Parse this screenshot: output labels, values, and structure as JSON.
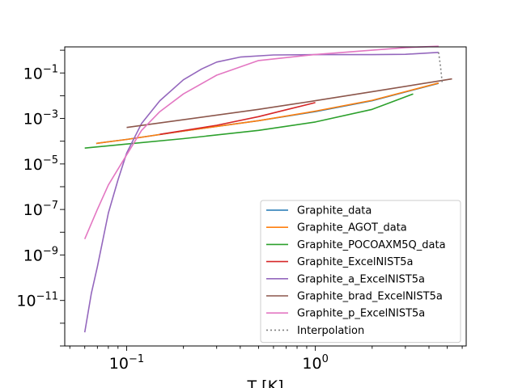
{
  "chart_data": {
    "type": "line",
    "title": "",
    "xlabel": "T [K]",
    "ylabel": "",
    "xscale": "log",
    "yscale": "log",
    "xlim": [
      0.047,
      6.3
    ],
    "ylim": [
      1e-13,
      1.4
    ],
    "x_ticks": [
      {
        "value": 0.1,
        "base": "10",
        "exp": "−1"
      },
      {
        "value": 1,
        "base": "10",
        "exp": "0"
      }
    ],
    "y_ticks": [
      {
        "value": 1e-11,
        "base": "10",
        "exp": "−11"
      },
      {
        "value": 1e-09,
        "base": "10",
        "exp": "−9"
      },
      {
        "value": 1e-07,
        "base": "10",
        "exp": "−7"
      },
      {
        "value": 1e-05,
        "base": "10",
        "exp": "−5"
      },
      {
        "value": 0.001,
        "base": "10",
        "exp": "−3"
      },
      {
        "value": 0.1,
        "base": "10",
        "exp": "−1"
      }
    ],
    "grid": false,
    "legend_position": "lower-right",
    "series": [
      {
        "name": "Graphite_data",
        "color": "#1f77b4",
        "dash": "",
        "points": [
          [
            0.069,
            8e-05
          ],
          [
            0.1,
            0.00012
          ],
          [
            0.2,
            0.00028
          ],
          [
            0.5,
            0.0008
          ],
          [
            1,
            0.002
          ],
          [
            2,
            0.006
          ],
          [
            4.5,
            0.035
          ]
        ]
      },
      {
        "name": "Graphite_AGOT_data",
        "color": "#ff7f0e",
        "dash": "",
        "points": [
          [
            0.069,
            8e-05
          ],
          [
            0.1,
            0.00012
          ],
          [
            0.2,
            0.00028
          ],
          [
            0.5,
            0.0008
          ],
          [
            1,
            0.0021
          ],
          [
            2,
            0.0063
          ],
          [
            4.5,
            0.036
          ]
        ]
      },
      {
        "name": "Graphite_POCOAXM5Q_data",
        "color": "#2ca02c",
        "dash": "",
        "points": [
          [
            0.06,
            5e-05
          ],
          [
            0.1,
            7.5e-05
          ],
          [
            0.2,
            0.00013
          ],
          [
            0.5,
            0.0003
          ],
          [
            1,
            0.0007
          ],
          [
            2,
            0.0025
          ],
          [
            3.3,
            0.012
          ]
        ]
      },
      {
        "name": "Graphite_ExcelNIST5a",
        "color": "#d62728",
        "dash": "",
        "points": [
          [
            0.15,
            0.0002
          ],
          [
            0.3,
            0.0005
          ],
          [
            0.5,
            0.0012
          ],
          [
            0.7,
            0.0024
          ],
          [
            1,
            0.005
          ]
        ]
      },
      {
        "name": "Graphite_a_ExcelNIST5a",
        "color": "#9467bd",
        "dash": "",
        "points": [
          [
            0.06,
            4e-13
          ],
          [
            0.065,
            2e-11
          ],
          [
            0.07,
            3e-10
          ],
          [
            0.08,
            7e-08
          ],
          [
            0.09,
            2e-06
          ],
          [
            0.1,
            3e-05
          ],
          [
            0.12,
            0.0006
          ],
          [
            0.15,
            0.006
          ],
          [
            0.2,
            0.05
          ],
          [
            0.25,
            0.15
          ],
          [
            0.3,
            0.3
          ],
          [
            0.4,
            0.5
          ],
          [
            0.6,
            0.62
          ],
          [
            1,
            0.64
          ],
          [
            2,
            0.64
          ],
          [
            3,
            0.66
          ],
          [
            4.5,
            0.8
          ]
        ]
      },
      {
        "name": "Graphite_brad_ExcelNIST5a",
        "color": "#8c564b",
        "dash": "",
        "points": [
          [
            0.1,
            0.0004
          ],
          [
            0.5,
            0.0025
          ],
          [
            1,
            0.006
          ],
          [
            2,
            0.015
          ],
          [
            5.3,
            0.055
          ]
        ]
      },
      {
        "name": "Graphite_p_ExcelNIST5a",
        "color": "#e377c2",
        "dash": "",
        "points": [
          [
            0.06,
            5e-09
          ],
          [
            0.07,
            1e-07
          ],
          [
            0.08,
            1.2e-06
          ],
          [
            0.1,
            2.5e-05
          ],
          [
            0.12,
            0.0003
          ],
          [
            0.15,
            0.002
          ],
          [
            0.2,
            0.012
          ],
          [
            0.3,
            0.08
          ],
          [
            0.5,
            0.35
          ],
          [
            1,
            0.65
          ],
          [
            2,
            1.0
          ],
          [
            3,
            1.3
          ],
          [
            4.5,
            1.5
          ]
        ]
      },
      {
        "name": "Interpolation",
        "color": "#7f7f7f",
        "dash": "2,3",
        "points": [
          [
            4.5,
            0.8
          ],
          [
            4.6,
            0.2
          ],
          [
            4.7,
            0.04
          ]
        ]
      }
    ]
  }
}
